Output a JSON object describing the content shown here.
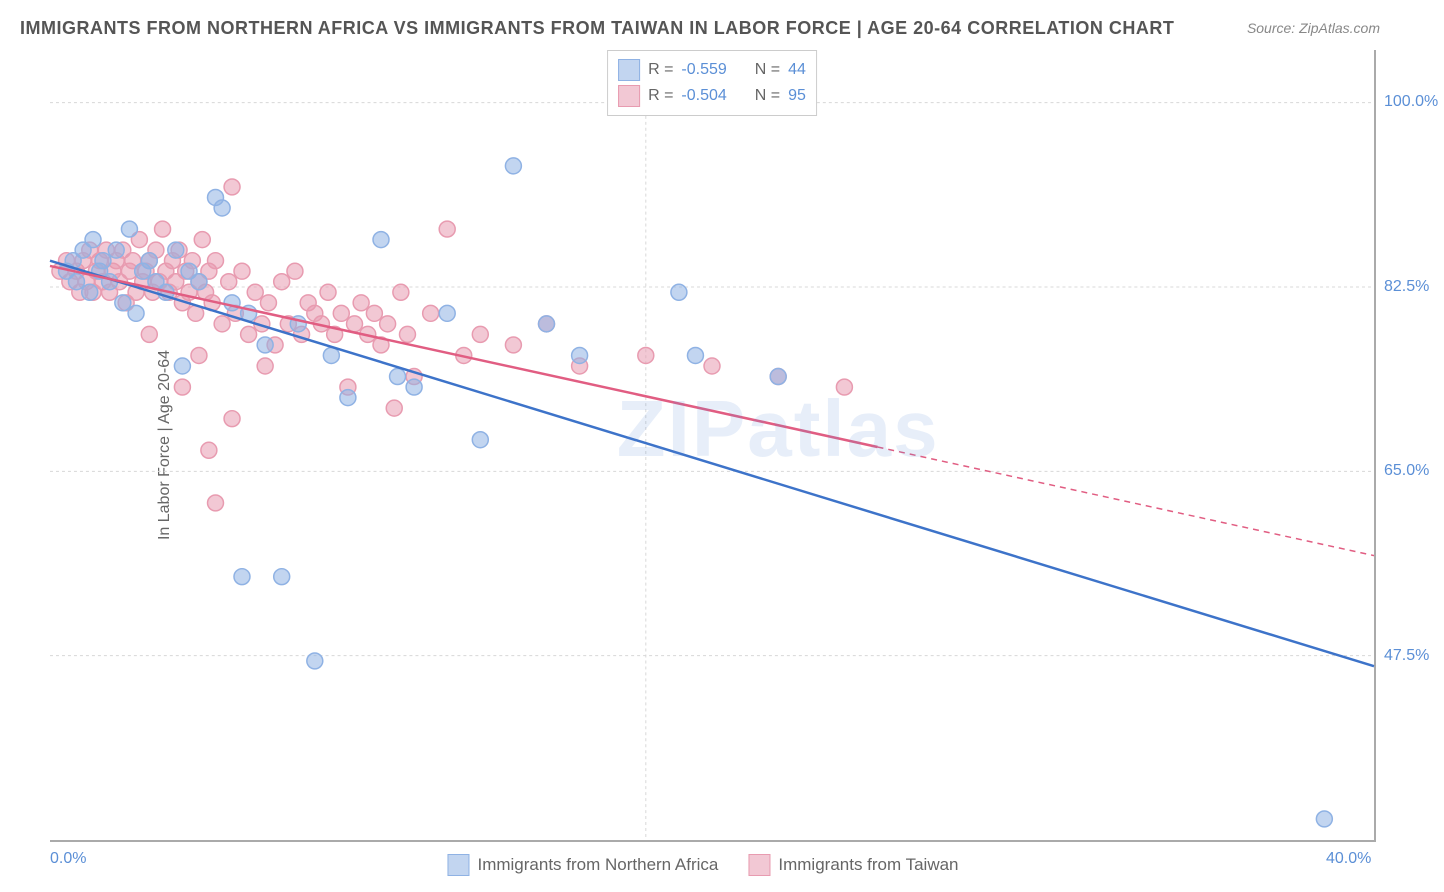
{
  "title": "IMMIGRANTS FROM NORTHERN AFRICA VS IMMIGRANTS FROM TAIWAN IN LABOR FORCE | AGE 20-64 CORRELATION CHART",
  "source": "Source: ZipAtlas.com",
  "watermark": "ZIPatlas",
  "y_axis_label": "In Labor Force | Age 20-64",
  "chart": {
    "type": "scatter",
    "xlim": [
      0,
      40
    ],
    "ylim": [
      30,
      105
    ],
    "x_ticks": [
      {
        "pos": 0,
        "label": "0.0%"
      },
      {
        "pos": 40,
        "label": "40.0%"
      }
    ],
    "y_ticks": [
      {
        "pos": 47.5,
        "label": "47.5%"
      },
      {
        "pos": 65.0,
        "label": "65.0%"
      },
      {
        "pos": 82.5,
        "label": "82.5%"
      },
      {
        "pos": 100.0,
        "label": "100.0%"
      }
    ],
    "grid_color": "#d8d8d8",
    "background_color": "#ffffff",
    "series": [
      {
        "name": "Immigrants from Northern Africa",
        "marker_color": "#8fb2e4",
        "marker_fill": "rgba(143,178,228,0.55)",
        "line_color": "#3d73c9",
        "R": "-0.559",
        "N": "44",
        "trend": {
          "x1": 0,
          "y1": 85.0,
          "x2": 40,
          "y2": 46.5,
          "solid_until": 40
        },
        "points": [
          [
            0.5,
            84
          ],
          [
            0.7,
            85
          ],
          [
            0.8,
            83
          ],
          [
            1.0,
            86
          ],
          [
            1.2,
            82
          ],
          [
            1.3,
            87
          ],
          [
            1.5,
            84
          ],
          [
            1.6,
            85
          ],
          [
            1.8,
            83
          ],
          [
            2.0,
            86
          ],
          [
            2.2,
            81
          ],
          [
            2.4,
            88
          ],
          [
            2.6,
            80
          ],
          [
            2.8,
            84
          ],
          [
            3.0,
            85
          ],
          [
            3.2,
            83
          ],
          [
            3.5,
            82
          ],
          [
            3.8,
            86
          ],
          [
            4.0,
            75
          ],
          [
            4.2,
            84
          ],
          [
            4.5,
            83
          ],
          [
            5.0,
            91
          ],
          [
            5.2,
            90
          ],
          [
            5.5,
            81
          ],
          [
            5.8,
            55
          ],
          [
            6.0,
            80
          ],
          [
            6.5,
            77
          ],
          [
            7.0,
            55
          ],
          [
            7.5,
            79
          ],
          [
            8.0,
            47
          ],
          [
            8.5,
            76
          ],
          [
            9.0,
            72
          ],
          [
            10.0,
            87
          ],
          [
            10.5,
            74
          ],
          [
            11.0,
            73
          ],
          [
            12.0,
            80
          ],
          [
            13.0,
            68
          ],
          [
            14.0,
            94
          ],
          [
            15.0,
            79
          ],
          [
            16.0,
            76
          ],
          [
            19.0,
            82
          ],
          [
            19.5,
            76
          ],
          [
            22.0,
            74
          ],
          [
            38.5,
            32
          ]
        ]
      },
      {
        "name": "Immigrants from Taiwan",
        "marker_color": "#e89bb0",
        "marker_fill": "rgba(232,155,176,0.55)",
        "line_color": "#e15d82",
        "R": "-0.504",
        "N": "95",
        "trend": {
          "x1": 0,
          "y1": 84.5,
          "x2": 40,
          "y2": 57.0,
          "solid_until": 25
        },
        "points": [
          [
            0.3,
            84
          ],
          [
            0.5,
            85
          ],
          [
            0.6,
            83
          ],
          [
            0.8,
            84
          ],
          [
            0.9,
            82
          ],
          [
            1.0,
            85
          ],
          [
            1.1,
            83
          ],
          [
            1.2,
            86
          ],
          [
            1.3,
            82
          ],
          [
            1.4,
            84
          ],
          [
            1.5,
            85
          ],
          [
            1.6,
            83
          ],
          [
            1.7,
            86
          ],
          [
            1.8,
            82
          ],
          [
            1.9,
            84
          ],
          [
            2.0,
            85
          ],
          [
            2.1,
            83
          ],
          [
            2.2,
            86
          ],
          [
            2.3,
            81
          ],
          [
            2.4,
            84
          ],
          [
            2.5,
            85
          ],
          [
            2.6,
            82
          ],
          [
            2.7,
            87
          ],
          [
            2.8,
            83
          ],
          [
            2.9,
            84
          ],
          [
            3.0,
            85
          ],
          [
            3.1,
            82
          ],
          [
            3.2,
            86
          ],
          [
            3.3,
            83
          ],
          [
            3.4,
            88
          ],
          [
            3.5,
            84
          ],
          [
            3.6,
            82
          ],
          [
            3.7,
            85
          ],
          [
            3.8,
            83
          ],
          [
            3.9,
            86
          ],
          [
            4.0,
            81
          ],
          [
            4.1,
            84
          ],
          [
            4.2,
            82
          ],
          [
            4.3,
            85
          ],
          [
            4.4,
            80
          ],
          [
            4.5,
            83
          ],
          [
            4.6,
            87
          ],
          [
            4.7,
            82
          ],
          [
            4.8,
            84
          ],
          [
            4.9,
            81
          ],
          [
            5.0,
            85
          ],
          [
            5.2,
            79
          ],
          [
            5.4,
            83
          ],
          [
            5.6,
            80
          ],
          [
            5.8,
            84
          ],
          [
            6.0,
            78
          ],
          [
            6.2,
            82
          ],
          [
            6.4,
            79
          ],
          [
            5.5,
            92
          ],
          [
            6.6,
            81
          ],
          [
            6.8,
            77
          ],
          [
            7.0,
            83
          ],
          [
            7.2,
            79
          ],
          [
            7.4,
            84
          ],
          [
            7.6,
            78
          ],
          [
            7.8,
            81
          ],
          [
            8.0,
            80
          ],
          [
            8.2,
            79
          ],
          [
            8.4,
            82
          ],
          [
            8.6,
            78
          ],
          [
            8.8,
            80
          ],
          [
            9.0,
            73
          ],
          [
            4.8,
            67
          ],
          [
            9.2,
            79
          ],
          [
            9.4,
            81
          ],
          [
            9.6,
            78
          ],
          [
            9.8,
            80
          ],
          [
            5.0,
            62
          ],
          [
            10.0,
            77
          ],
          [
            10.2,
            79
          ],
          [
            10.4,
            71
          ],
          [
            10.6,
            82
          ],
          [
            4.5,
            76
          ],
          [
            10.8,
            78
          ],
          [
            11.0,
            74
          ],
          [
            11.5,
            80
          ],
          [
            12.0,
            88
          ],
          [
            12.5,
            76
          ],
          [
            13.0,
            78
          ],
          [
            6.5,
            75
          ],
          [
            14.0,
            77
          ],
          [
            15.0,
            79
          ],
          [
            16.0,
            75
          ],
          [
            4.0,
            73
          ],
          [
            18.0,
            76
          ],
          [
            20.0,
            75
          ],
          [
            22.0,
            74
          ],
          [
            24.0,
            73
          ],
          [
            3.0,
            78
          ],
          [
            5.5,
            70
          ]
        ]
      }
    ]
  },
  "legend_labels": {
    "r_label": "R =",
    "n_label": "N ="
  },
  "bottom_legend": [
    {
      "label": "Immigrants from Northern Africa",
      "fill": "rgba(143,178,228,0.55)",
      "stroke": "#8fb2e4"
    },
    {
      "label": "Immigrants from Taiwan",
      "fill": "rgba(232,155,176,0.55)",
      "stroke": "#e89bb0"
    }
  ]
}
